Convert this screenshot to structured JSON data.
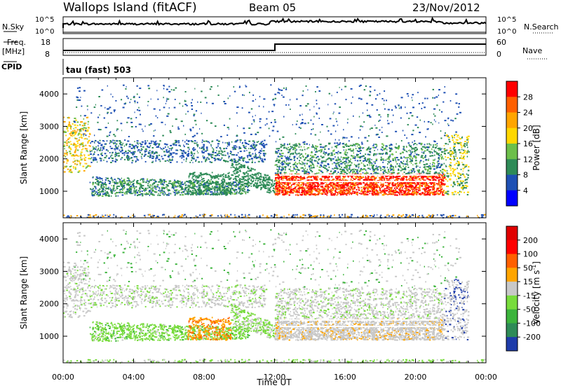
{
  "header": {
    "site": "Wallops Island (fitACF)",
    "beam": "Beam 05",
    "date": "23/Nov/2012"
  },
  "status_panel": {
    "nsky_label": "N.Sky",
    "nsky_ticks": [
      "10^5",
      "10^0"
    ],
    "nsearch_label": "N.Search",
    "nsearch_ticks": [
      "10^5",
      "10^0"
    ],
    "freq_label": "Freq.",
    "freq_unit": "[MHz]",
    "freq_ticks": [
      "18",
      "8"
    ],
    "nave_label": "Nave",
    "nave_ticks": [
      "60",
      "0"
    ],
    "cpid_label": "CPID",
    "cpid_value": "tau (fast) 503"
  },
  "chart_data": [
    {
      "type": "heatmap",
      "name": "power",
      "xlabel": "",
      "ylabel": "Slant Range [km]",
      "xlim": [
        0,
        24
      ],
      "ylim": [
        180,
        4500
      ],
      "yticks": [
        "1000",
        "2000",
        "3000",
        "4000"
      ],
      "colorbar_label": "Power [dB]",
      "colorbar_ticks": [
        "4",
        "8",
        "12",
        "16",
        "20",
        "24",
        "28"
      ],
      "colorbar_colors": [
        "#0000ff",
        "#1e50b4",
        "#2e8b57",
        "#6cbf4a",
        "#ffd700",
        "#ffa500",
        "#ff6000",
        "#ff0000"
      ]
    },
    {
      "type": "heatmap",
      "name": "velocity",
      "xlabel": "Time UT",
      "ylabel": "Slant Range [km]",
      "xlim": [
        0,
        24
      ],
      "ylim": [
        180,
        4500
      ],
      "xticks": [
        "00:00",
        "04:00",
        "08:00",
        "12:00",
        "16:00",
        "20:00",
        "00:00"
      ],
      "yticks": [
        "1000",
        "2000",
        "3000",
        "4000"
      ],
      "colorbar_label": "Velocity [m s^-1]",
      "colorbar_ticks": [
        "200",
        "100",
        "50",
        "15",
        "-15",
        "-50",
        "-100",
        "-200"
      ],
      "colorbar_colors": [
        "#1e3caa",
        "#2e8b57",
        "#3cb43c",
        "#78dc3c",
        "#c8c8c8",
        "#ffa500",
        "#ff6000",
        "#ff0000",
        "#e00000"
      ]
    }
  ]
}
